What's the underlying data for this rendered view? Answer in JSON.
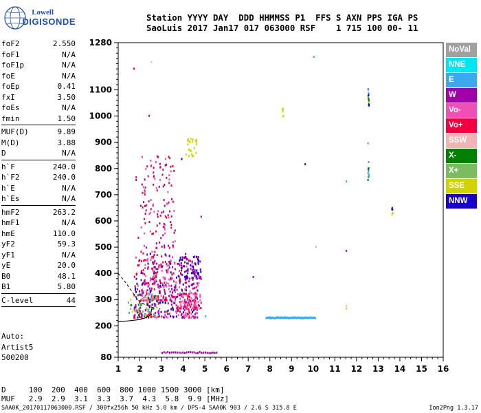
{
  "logo": {
    "line1": "Lowell",
    "line2": "DIGISONDE"
  },
  "header": {
    "line1": "Station YYYY DAY  DDD HHMMSS P1  FFS S AXN PPS IGA PS",
    "line2": "SaoLuis 2017 Jan17 017 063000 RSF    1 715 100 00- 11"
  },
  "params_groups": [
    [
      {
        "k": "foF2",
        "v": "2.550"
      },
      {
        "k": "foF1",
        "v": "N/A"
      },
      {
        "k": "foF1p",
        "v": "N/A"
      },
      {
        "k": "foE",
        "v": "N/A"
      },
      {
        "k": "foEp",
        "v": "0.41"
      },
      {
        "k": "fxI",
        "v": "3.50"
      },
      {
        "k": "foEs",
        "v": "N/A"
      },
      {
        "k": "fmin",
        "v": "1.50"
      }
    ],
    [
      {
        "k": "MUF(D)",
        "v": "9.89"
      },
      {
        "k": "M(D)",
        "v": "3.88"
      },
      {
        "k": "D",
        "v": "N/A"
      }
    ],
    [
      {
        "k": "h`F",
        "v": "240.0"
      },
      {
        "k": "h`F2",
        "v": "240.0"
      },
      {
        "k": "h`E",
        "v": "N/A"
      },
      {
        "k": "h`Es",
        "v": "N/A"
      }
    ],
    [
      {
        "k": "hmF2",
        "v": "263.2"
      },
      {
        "k": "hmF1",
        "v": "N/A"
      },
      {
        "k": "hmE",
        "v": "110.0"
      },
      {
        "k": "yF2",
        "v": "59.3"
      },
      {
        "k": "yF1",
        "v": "N/A"
      },
      {
        "k": "yE",
        "v": "20.0"
      },
      {
        "k": "B0",
        "v": "48.1"
      },
      {
        "k": "B1",
        "v": "5.80"
      }
    ],
    [
      {
        "k": "C-level",
        "v": "44"
      }
    ]
  ],
  "notes": [
    "Auto:",
    "Artist5",
    "500200"
  ],
  "dmuf": {
    "line1": "D     100  200  400  600  800 1000 1500 3000 [km]",
    "line2": "MUF   2.9  2.9  3.1  3.3  3.7  4.3  5.8  9.9 [MHz]"
  },
  "footer": {
    "left": "SAA0K_20170117063000.RSF / 300fx256h 50 kHz 5.0 km / DPS-4 SAA0K 903 / 2.6 S 315.8 E",
    "right": "Ion2Png 1.3.17"
  },
  "legend": [
    {
      "label": "NoVal",
      "color": "#a0a0a0"
    },
    {
      "label": "NNE",
      "color": "#00e6f0"
    },
    {
      "label": "E",
      "color": "#3ca8f0"
    },
    {
      "label": "W",
      "color": "#a000a8"
    },
    {
      "label": "Vo-",
      "color": "#f050b4"
    },
    {
      "label": "Vo+",
      "color": "#f00040"
    },
    {
      "label": "SSW",
      "color": "#f0b4b4"
    },
    {
      "label": "X-",
      "color": "#008000"
    },
    {
      "label": "X+",
      "color": "#7cbc60"
    },
    {
      "label": "SSE",
      "color": "#d2d200"
    },
    {
      "label": "NNW",
      "color": "#1800c8"
    }
  ],
  "chart_data": {
    "type": "scatter",
    "x_ticks": [
      1,
      2,
      3,
      4,
      5,
      6,
      7,
      8,
      9,
      10,
      11,
      12,
      13,
      14,
      15,
      16
    ],
    "y_ticks": [
      80,
      200,
      300,
      400,
      500,
      600,
      700,
      800,
      900,
      1000,
      1100,
      1280
    ],
    "xlim": [
      1,
      16
    ],
    "ylim": [
      80,
      1280
    ],
    "grid": false,
    "profile_curve": [
      [
        1.0,
        215
      ],
      [
        1.5,
        219
      ],
      [
        2.0,
        224
      ],
      [
        2.2,
        229
      ],
      [
        2.4,
        236
      ],
      [
        2.5,
        245
      ],
      [
        2.55,
        265
      ]
    ],
    "dashed_curve": [
      [
        1.0,
        400
      ],
      [
        1.3,
        370
      ],
      [
        1.6,
        335
      ],
      [
        1.9,
        300
      ],
      [
        2.2,
        282
      ],
      [
        2.5,
        272
      ],
      [
        2.7,
        268
      ]
    ],
    "clusters": [
      {
        "x": [
          1.7,
          4.7
        ],
        "y": [
          235,
          480
        ],
        "n": 420,
        "colors": [
          "#f00040",
          "#a000a8",
          "#f050b4",
          "#1800c8"
        ]
      },
      {
        "x": [
          2.0,
          3.6
        ],
        "y": [
          300,
          860
        ],
        "n": 260,
        "colors": [
          "#f00040",
          "#a000a8",
          "#f050b4"
        ]
      },
      {
        "x": [
          3.8,
          4.8
        ],
        "y": [
          270,
          330
        ],
        "n": 90,
        "colors": [
          "#f00040",
          "#f050b4"
        ]
      },
      {
        "x": [
          3.8,
          4.8
        ],
        "y": [
          380,
          470
        ],
        "n": 70,
        "colors": [
          "#1800c8",
          "#a000a8"
        ]
      },
      {
        "x": [
          1.4,
          2.8
        ],
        "y": [
          240,
          330
        ],
        "n": 50,
        "colors": [
          "#008000",
          "#7cbc60",
          "#d2d200",
          "#3ca8f0"
        ]
      },
      {
        "x": [
          4.1,
          4.6
        ],
        "y": [
          850,
          920
        ],
        "n": 22,
        "colors": [
          "#d2d200"
        ]
      }
    ],
    "streaks": [
      {
        "x": [
          7.8,
          10.1
        ],
        "y": [
          232,
          236
        ],
        "n": 70,
        "color": "#3ca8f0"
      },
      {
        "x": [
          3.0,
          5.6
        ],
        "y": [
          100,
          104
        ],
        "n": 30,
        "color": "#a000a8"
      },
      {
        "x": [
          12.5,
          12.55
        ],
        "y": [
          1040,
          1110
        ],
        "n": 14,
        "colors": [
          "#3ca8f0",
          "#008000",
          "#1800c8"
        ]
      },
      {
        "x": [
          12.5,
          12.55
        ],
        "y": [
          770,
          830
        ],
        "n": 10,
        "colors": [
          "#3ca8f0",
          "#008000"
        ]
      },
      {
        "x": [
          13.6,
          13.65
        ],
        "y": [
          625,
          660
        ],
        "n": 6,
        "colors": [
          "#a000a8",
          "#d2d200",
          "#1800c8"
        ]
      },
      {
        "x": [
          8.55,
          8.6
        ],
        "y": [
          985,
          1035
        ],
        "n": 6,
        "color": "#d2d200"
      }
    ],
    "points": [
      {
        "x": 1.7,
        "y": 1185,
        "color": "#f00040"
      },
      {
        "x": 2.5,
        "y": 1210,
        "color": "#f0b4b4"
      },
      {
        "x": 10.0,
        "y": 1230,
        "color": "#3ca8f0"
      },
      {
        "x": 2.4,
        "y": 1005,
        "color": "#a000a8"
      },
      {
        "x": 9.6,
        "y": 820,
        "color": "#1800c8"
      },
      {
        "x": 11.5,
        "y": 755,
        "color": "#3ca8f0"
      },
      {
        "x": 12.5,
        "y": 900,
        "color": "#3ca8f0"
      },
      {
        "x": 12.5,
        "y": 760,
        "color": "#008000"
      },
      {
        "x": 7.2,
        "y": 390,
        "color": "#a000a8"
      },
      {
        "x": 11.5,
        "y": 490,
        "color": "#f00040"
      },
      {
        "x": 10.1,
        "y": 505,
        "color": "#f0b4b4"
      },
      {
        "x": 11.5,
        "y": 280,
        "color": "#f0b4b4"
      },
      {
        "x": 11.5,
        "y": 270,
        "color": "#d2d200"
      },
      {
        "x": 1.8,
        "y": 770,
        "color": "#f00040"
      },
      {
        "x": 1.8,
        "y": 760,
        "color": "#a000a8"
      },
      {
        "x": 1.9,
        "y": 540,
        "color": "#a000a8"
      },
      {
        "x": 3.9,
        "y": 840,
        "color": "#1800c8"
      },
      {
        "x": 4.8,
        "y": 620,
        "color": "#f00040"
      },
      {
        "x": 5.0,
        "y": 240,
        "color": "#3ca8f0"
      }
    ]
  }
}
